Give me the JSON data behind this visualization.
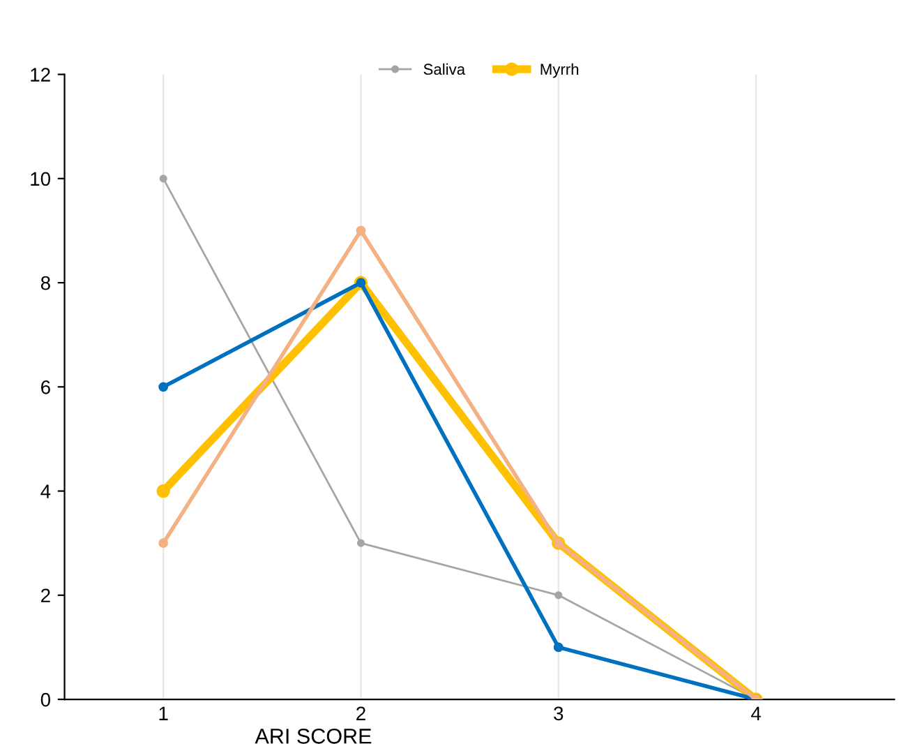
{
  "chart_data": {
    "type": "line",
    "xlabel": "ARI SCORE",
    "categories": [
      "1",
      "2",
      "3",
      "4"
    ],
    "series": [
      {
        "name": "Saliva",
        "color": "#a5a5a5",
        "values": [
          10,
          3,
          2,
          0
        ]
      },
      {
        "name": "Myrrh",
        "color": "#ffc000",
        "values": [
          4,
          8,
          3,
          0
        ]
      },
      {
        "color": "#0070c0",
        "values": [
          6,
          8,
          1,
          0
        ]
      },
      {
        "color": "#f4b183",
        "values": [
          3,
          9,
          3,
          0
        ]
      }
    ],
    "ylim": [
      0,
      12
    ],
    "yticks": [
      0,
      2,
      4,
      6,
      8,
      10,
      12
    ],
    "grid": "x",
    "legend": "top",
    "marker": "circle"
  }
}
